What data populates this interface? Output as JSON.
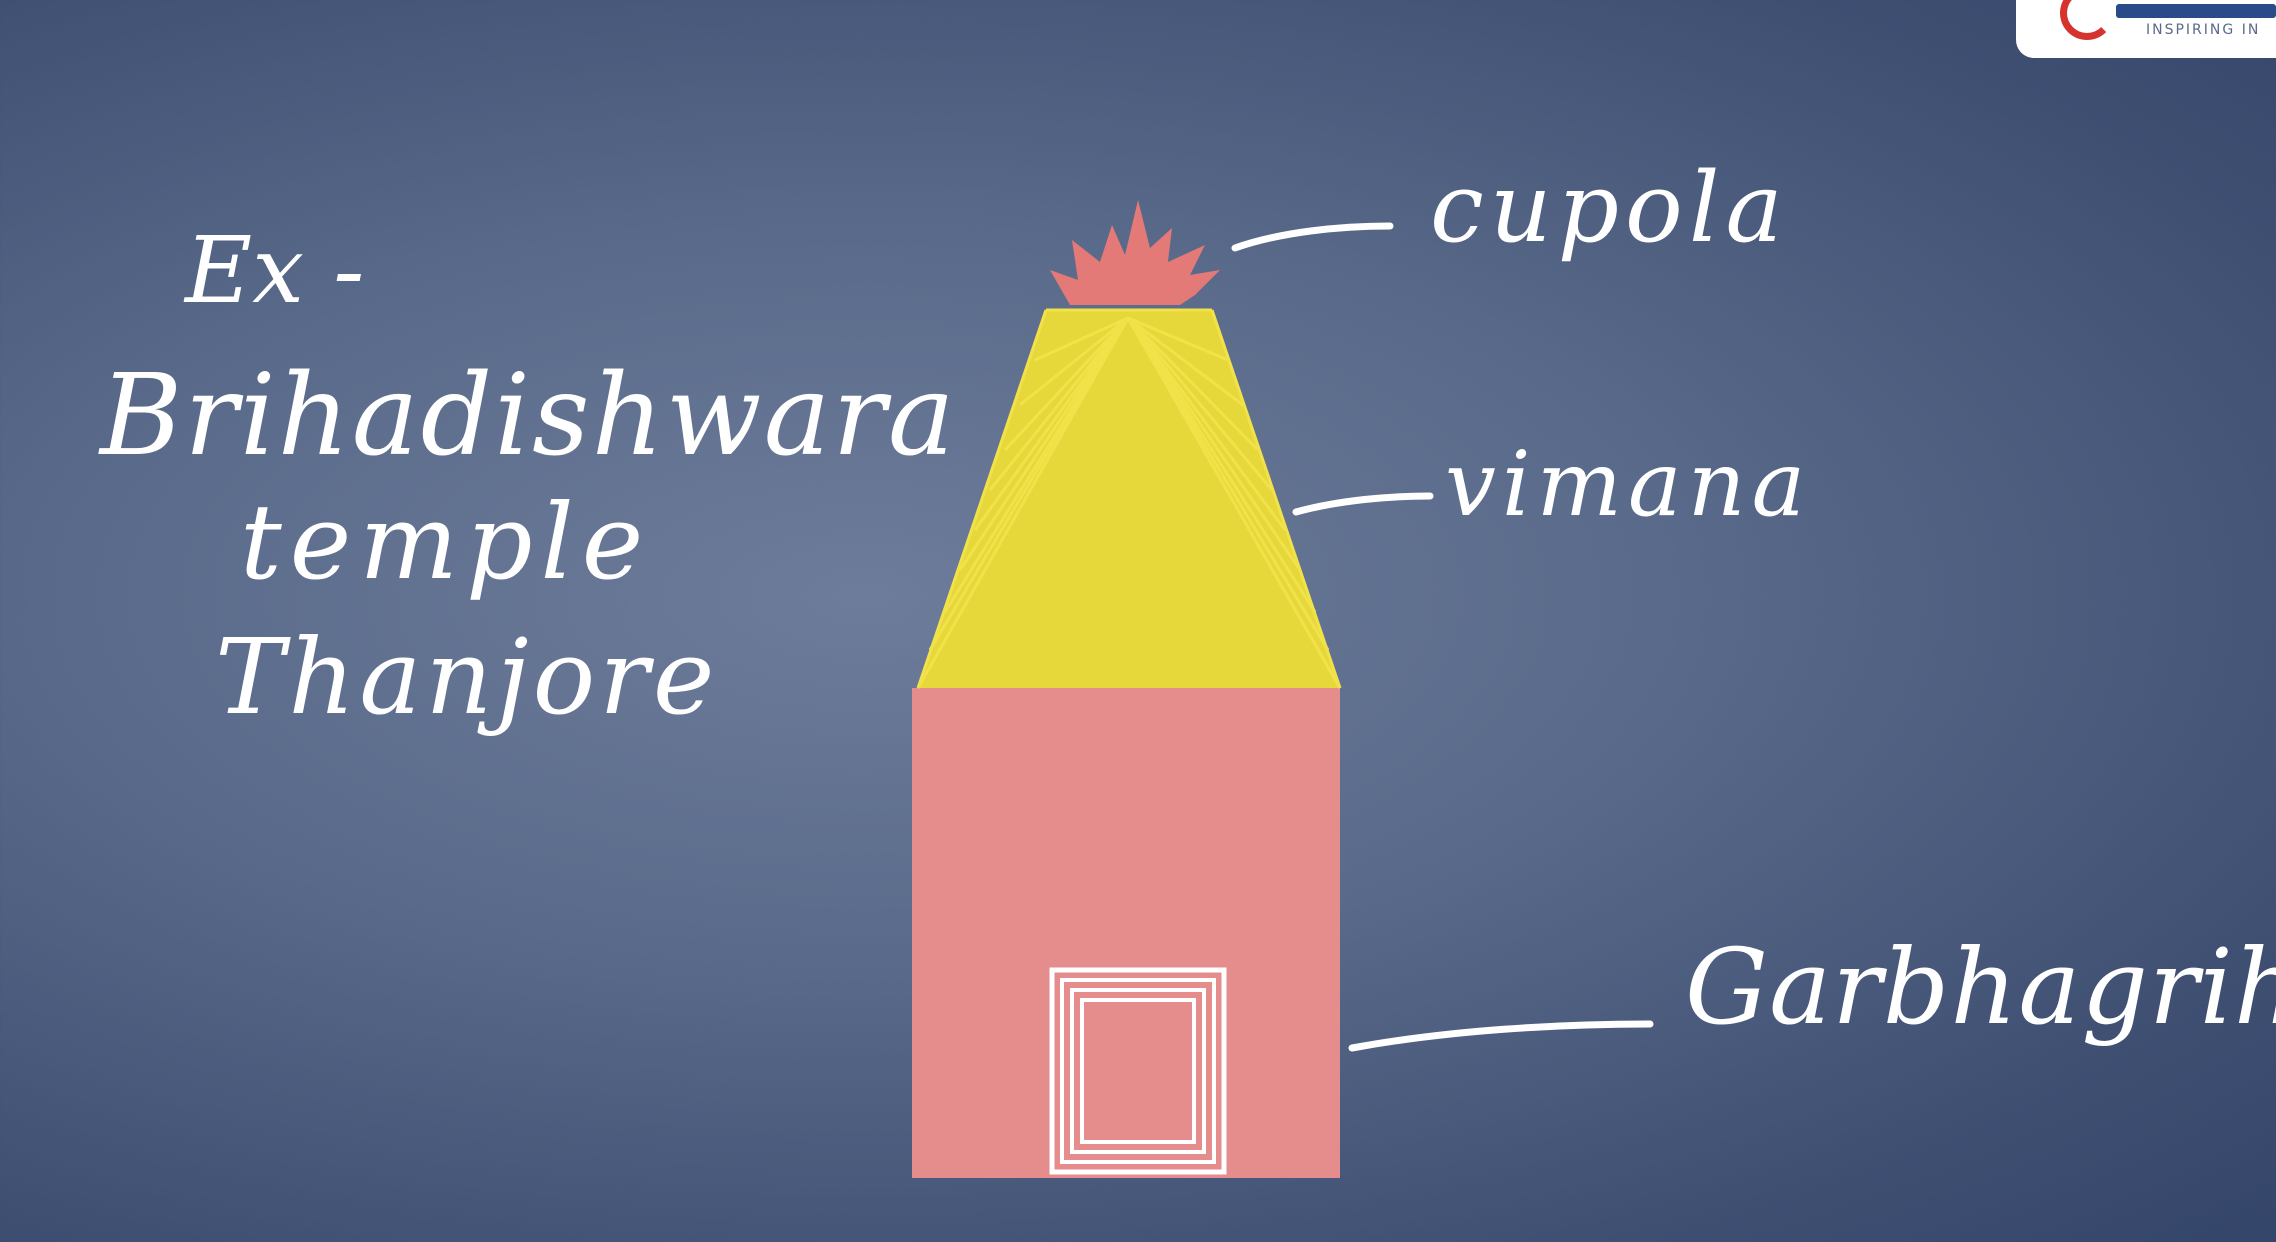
{
  "notes": {
    "line1": "Ex -",
    "line2": "Brihadishwara",
    "line3": "temple",
    "line4": "Thanjore"
  },
  "labels": {
    "cupola": "cupola",
    "vimana": "vimana",
    "garbhagriha": "Garbhagriha"
  },
  "logo": {
    "tagline": "INSPIRING IN"
  },
  "colors": {
    "background": "#5a6a8a",
    "vimana_fill": "#e6d83a",
    "vimana_lines": "#f2e24a",
    "base_fill": "#e58c8c",
    "cupola_fill": "#e47a78",
    "chalk": "#ffffff"
  }
}
